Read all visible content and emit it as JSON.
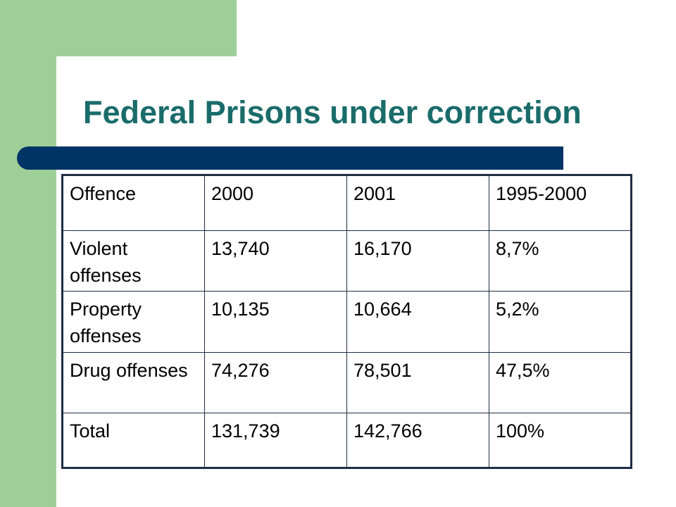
{
  "slide": {
    "title": "Federal Prisons under correction",
    "colors": {
      "green_band": "#9ecf98",
      "title_text": "#1a6c6a",
      "title_bar": "#003366",
      "table_border": "#1f2d44"
    }
  },
  "table": {
    "headers": [
      "Offence",
      "2000",
      "2001",
      "1995-2000"
    ],
    "rows": [
      [
        "Violent offenses",
        "13,740",
        "16,170",
        "8,7%"
      ],
      [
        "Property offenses",
        "10,135",
        "10,664",
        "5,2%"
      ],
      [
        "Drug offenses",
        "74,276",
        "78,501",
        "47,5%"
      ],
      [
        "Total",
        "131,739",
        "142,766",
        "100%"
      ]
    ]
  }
}
